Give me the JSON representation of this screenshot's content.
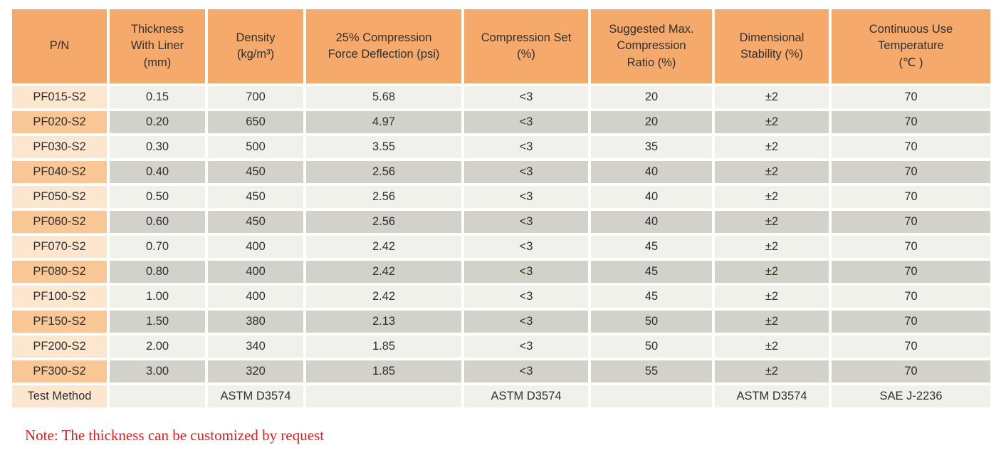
{
  "table": {
    "columns": [
      "P/N",
      "Thickness\nWith Liner\n(mm)",
      "Density\n(kg/m³)",
      "25% Compression\nForce Deflection (psi)",
      "Compression Set\n(%)",
      "Suggested Max.\nCompression\nRatio (%)",
      "Dimensional\nStability (%)",
      "Continuous Use\nTemperature\n(℃ )"
    ],
    "rows": [
      [
        "PF015-S2",
        "0.15",
        "700",
        "5.68",
        "<3",
        "20",
        "±2",
        "70"
      ],
      [
        "PF020-S2",
        "0.20",
        "650",
        "4.97",
        "<3",
        "20",
        "±2",
        "70"
      ],
      [
        "PF030-S2",
        "0.30",
        "500",
        "3.55",
        "<3",
        "35",
        "±2",
        "70"
      ],
      [
        "PF040-S2",
        "0.40",
        "450",
        "2.56",
        "<3",
        "40",
        "±2",
        "70"
      ],
      [
        "PF050-S2",
        "0.50",
        "450",
        "2.56",
        "<3",
        "40",
        "±2",
        "70"
      ],
      [
        "PF060-S2",
        "0.60",
        "450",
        "2.56",
        "<3",
        "40",
        "±2",
        "70"
      ],
      [
        "PF070-S2",
        "0.70",
        "400",
        "2.42",
        "<3",
        "45",
        "±2",
        "70"
      ],
      [
        "PF080-S2",
        "0.80",
        "400",
        "2.42",
        "<3",
        "45",
        "±2",
        "70"
      ],
      [
        "PF100-S2",
        "1.00",
        "400",
        "2.42",
        "<3",
        "45",
        "±2",
        "70"
      ],
      [
        "PF150-S2",
        "1.50",
        "380",
        "2.13",
        "<3",
        "50",
        "±2",
        "70"
      ],
      [
        "PF200-S2",
        "2.00",
        "340",
        "1.85",
        "<3",
        "50",
        "±2",
        "70"
      ],
      [
        "PF300-S2",
        "3.00",
        "320",
        "1.85",
        "<3",
        "55",
        "±2",
        "70"
      ],
      [
        "Test Method",
        "",
        "ASTM D3574",
        "",
        "ASTM D3574",
        "",
        "ASTM D3574",
        "SAE J-2236"
      ]
    ]
  },
  "note": "Note: The thickness can be customized by request",
  "colors": {
    "header_bg": "#F5AA6C",
    "pn_light": "#FCE6CE",
    "pn_dark": "#F8C795",
    "row_light": "#F1F1EB",
    "row_dark": "#D2D2CB",
    "note_red": "#E01E1E",
    "text": "#303030"
  }
}
